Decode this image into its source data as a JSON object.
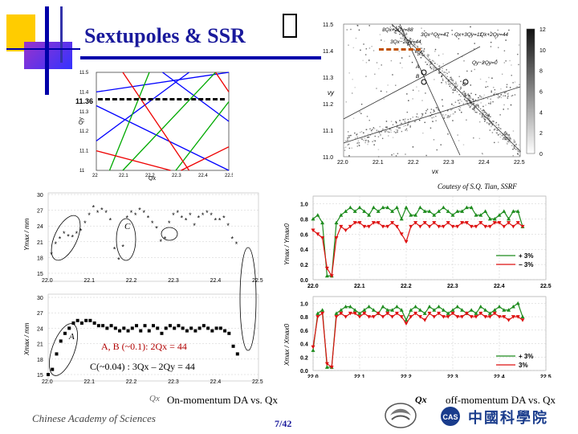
{
  "slide": {
    "title": "Sextupoles & SSR",
    "courtesy": "Coutesy of S.Q. Tian, SSRF",
    "page_number": "7/42",
    "institution_en": "Chinese Academy of Sciences",
    "institution_cn": "中國科學院"
  },
  "captions": {
    "on_momentum": "On-momentum DA vs. Qx",
    "off_momentum": "off-momentum DA vs. Qx",
    "qx_label_left": "Qx",
    "qx_label_right": "Qx"
  },
  "annotations": {
    "resonance_ab": "A, B (~0.1): 2Qx = 44",
    "resonance_c": "C(~0.04) : 3Qx – 2Qy = 44",
    "label_a": "A",
    "label_c": "C",
    "qy_marker": "11.36"
  },
  "chart_data": [
    {
      "type": "line",
      "title": "",
      "xlabel": "Qx",
      "ylabel": "Qy",
      "x_ticks": [
        "22",
        "22.1",
        "22.2",
        "22.3",
        "22.4",
        "22.5"
      ],
      "y_ticks": [
        "11",
        "11.1",
        "11.2",
        "11.3",
        "11.4",
        "11.5"
      ],
      "xlim": [
        22,
        22.5
      ],
      "ylim": [
        11,
        11.5
      ],
      "series": [
        {
          "color": "#0000ff",
          "segments": [
            [
              [
                22,
                11.4
              ],
              [
                22.5,
                11.5
              ]
            ],
            [
              [
                22,
                11.33
              ],
              [
                22.5,
                11.0
              ]
            ],
            [
              [
                22.25,
                11.5
              ],
              [
                22.5,
                11.25
              ]
            ],
            [
              [
                22.0,
                11.15
              ],
              [
                22.35,
                11.5
              ]
            ]
          ]
        },
        {
          "color": "#00aa00",
          "segments": [
            [
              [
                22.05,
                11.0
              ],
              [
                22.2,
                11.5
              ]
            ],
            [
              [
                22.1,
                11.0
              ],
              [
                22.45,
                11.5
              ]
            ],
            [
              [
                22.3,
                11.0
              ],
              [
                22.5,
                11.35
              ]
            ]
          ]
        },
        {
          "color": "#ee0000",
          "segments": [
            [
              [
                22.1,
                11.5
              ],
              [
                22.35,
                11.0
              ]
            ],
            [
              [
                22.0,
                11.1
              ],
              [
                22.28,
                11.0
              ]
            ],
            [
              [
                22.32,
                11.0
              ],
              [
                22.5,
                11.12
              ]
            ],
            [
              [
                22.45,
                11.5
              ],
              [
                22.5,
                11.4
              ]
            ]
          ]
        }
      ]
    },
    {
      "type": "heatmap",
      "title": "",
      "xlabel": "νx",
      "ylabel": "νy",
      "x_ticks": [
        "22.0",
        "22.1",
        "22.2",
        "22.3",
        "22.4",
        "22.5"
      ],
      "y_ticks": [
        "11.0",
        "11.1",
        "11.2",
        "11.3",
        "11.4",
        "11.5"
      ],
      "colorbar_ticks": [
        "0",
        "2",
        "4",
        "6",
        "8",
        "10",
        "12"
      ],
      "resonance_labels": [
        "3Qx−2Qy=88",
        "3Qx−Qy=47",
        "Qx+3Qy=11",
        "Qx+2Qy=44",
        "3Qx−2Qy=44",
        "Qy−2Qy=0",
        "A",
        "B",
        "C"
      ]
    },
    {
      "type": "scatter",
      "title": "",
      "ylabel": "Ymax / mm",
      "xlabel": "",
      "x_ticks": [
        "22.0",
        "22.1",
        "22.2",
        "22.3",
        "22.4",
        "22.5"
      ],
      "y_ticks": [
        "15",
        "18",
        "21",
        "24",
        "27",
        "30"
      ],
      "ylim": [
        15,
        30
      ],
      "series": [
        {
          "name": "",
          "x": [
            22.01,
            22.02,
            22.03,
            22.04,
            22.05,
            22.06,
            22.07,
            22.08,
            22.09,
            22.1,
            22.11,
            22.12,
            22.13,
            22.14,
            22.15,
            22.16,
            22.17,
            22.18,
            22.19,
            22.2,
            22.21,
            22.22,
            22.23,
            22.24,
            22.25,
            22.26,
            22.27,
            22.28,
            22.29,
            22.3,
            22.31,
            22.32,
            22.33,
            22.34,
            22.35,
            22.36,
            22.37,
            22.38,
            22.39,
            22.4,
            22.41,
            22.42,
            22.43,
            22.44,
            22.45
          ],
          "values": [
            18.5,
            20.5,
            21.5,
            22.5,
            22.0,
            21.8,
            22.5,
            23.0,
            24.5,
            26.0,
            27.5,
            26.5,
            27.0,
            26.5,
            25.0,
            19.5,
            17.5,
            20.0,
            25.5,
            26.5,
            26.0,
            27.0,
            26.5,
            25.5,
            24.5,
            23.5,
            21.0,
            21.5,
            24.5,
            26.0,
            26.5,
            25.5,
            25.0,
            26.0,
            24.0,
            25.5,
            26.0,
            26.5,
            26.0,
            25.0,
            25.0,
            25.5,
            24.0,
            21.5,
            20.5
          ]
        }
      ]
    },
    {
      "type": "scatter",
      "title": "",
      "ylabel": "Xmax / mm",
      "xlabel": "",
      "x_ticks": [
        "22.0",
        "22.1",
        "22.2",
        "22.3",
        "22.4",
        "22.5"
      ],
      "y_ticks": [
        "15",
        "18",
        "21",
        "24",
        "27",
        "30"
      ],
      "ylim": [
        15,
        30
      ],
      "series": [
        {
          "name": "",
          "x": [
            22.0,
            22.01,
            22.02,
            22.03,
            22.04,
            22.05,
            22.06,
            22.07,
            22.08,
            22.09,
            22.1,
            22.11,
            22.12,
            22.13,
            22.14,
            22.15,
            22.16,
            22.17,
            22.18,
            22.19,
            22.2,
            22.21,
            22.22,
            22.23,
            22.24,
            22.25,
            22.26,
            22.27,
            22.28,
            22.29,
            22.3,
            22.31,
            22.32,
            22.33,
            22.34,
            22.35,
            22.36,
            22.37,
            22.38,
            22.39,
            22.4,
            22.41,
            22.42,
            22.43,
            22.44,
            22.45
          ],
          "values": [
            15.0,
            16.0,
            19.0,
            21.5,
            23.0,
            24.0,
            25.0,
            25.5,
            25.0,
            25.5,
            25.5,
            25.0,
            24.5,
            24.5,
            24.0,
            24.5,
            24.0,
            23.5,
            24.0,
            23.5,
            24.0,
            24.5,
            23.5,
            24.5,
            23.5,
            24.5,
            24.0,
            23.0,
            24.0,
            24.5,
            24.0,
            24.5,
            24.0,
            23.5,
            24.0,
            23.5,
            24.0,
            24.5,
            24.0,
            23.5,
            24.0,
            24.0,
            23.5,
            23.0,
            20.5,
            19.0
          ]
        }
      ]
    },
    {
      "type": "line",
      "title": "",
      "ylabel": "Ymax / Ymax0",
      "xlabel": "",
      "x_ticks": [
        "22.0",
        "22.1",
        "22.2",
        "22.3",
        "22.4",
        "22.5"
      ],
      "y_ticks": [
        "0.0",
        "0.2",
        "0.4",
        "0.6",
        "0.8",
        "1.0"
      ],
      "ylim": [
        0,
        1.1
      ],
      "series": [
        {
          "name": "+ 3%",
          "color": "#1e8c1e",
          "x": [
            22.0,
            22.01,
            22.02,
            22.03,
            22.04,
            22.05,
            22.06,
            22.07,
            22.08,
            22.09,
            22.1,
            22.11,
            22.12,
            22.13,
            22.14,
            22.15,
            22.16,
            22.17,
            22.18,
            22.19,
            22.2,
            22.21,
            22.22,
            22.23,
            22.24,
            22.25,
            22.26,
            22.27,
            22.28,
            22.29,
            22.3,
            22.31,
            22.32,
            22.33,
            22.34,
            22.35,
            22.36,
            22.37,
            22.38,
            22.39,
            22.4,
            22.41,
            22.42,
            22.43,
            22.44,
            22.45
          ],
          "values": [
            0.8,
            0.85,
            0.75,
            0.05,
            0.05,
            0.75,
            0.85,
            0.9,
            0.95,
            0.9,
            0.95,
            0.9,
            0.85,
            0.95,
            0.9,
            0.95,
            0.95,
            0.9,
            0.95,
            0.8,
            0.95,
            0.85,
            0.85,
            0.95,
            0.9,
            0.9,
            0.85,
            0.9,
            0.95,
            0.9,
            0.85,
            0.9,
            0.9,
            0.95,
            0.95,
            0.85,
            0.85,
            0.9,
            0.8,
            0.8,
            0.85,
            0.9,
            0.8,
            0.9,
            0.9,
            0.7
          ]
        },
        {
          "name": "− 3%",
          "color": "#dd1111",
          "x": [
            22.0,
            22.01,
            22.02,
            22.03,
            22.04,
            22.05,
            22.06,
            22.07,
            22.08,
            22.09,
            22.1,
            22.11,
            22.12,
            22.13,
            22.14,
            22.15,
            22.16,
            22.17,
            22.18,
            22.19,
            22.2,
            22.21,
            22.22,
            22.23,
            22.24,
            22.25,
            22.26,
            22.27,
            22.28,
            22.29,
            22.3,
            22.31,
            22.32,
            22.33,
            22.34,
            22.35,
            22.36,
            22.37,
            22.38,
            22.39,
            22.4,
            22.41,
            22.42,
            22.43,
            22.44,
            22.45
          ],
          "values": [
            0.65,
            0.6,
            0.55,
            0.15,
            0.05,
            0.55,
            0.7,
            0.65,
            0.7,
            0.75,
            0.75,
            0.7,
            0.7,
            0.75,
            0.75,
            0.7,
            0.7,
            0.75,
            0.7,
            0.6,
            0.5,
            0.7,
            0.75,
            0.7,
            0.75,
            0.7,
            0.75,
            0.7,
            0.7,
            0.75,
            0.7,
            0.7,
            0.75,
            0.75,
            0.7,
            0.7,
            0.75,
            0.7,
            0.7,
            0.75,
            0.75,
            0.7,
            0.75,
            0.7,
            0.75,
            0.7
          ]
        }
      ]
    },
    {
      "type": "line",
      "title": "",
      "ylabel": "Xmax / Xmax0",
      "xlabel": "",
      "x_ticks": [
        "22.0",
        "22.1",
        "22.2",
        "22.3",
        "22.4",
        "22.5"
      ],
      "y_ticks": [
        "0.0",
        "0.2",
        "0.4",
        "0.6",
        "0.8",
        "1.0"
      ],
      "ylim": [
        0,
        1.1
      ],
      "series": [
        {
          "name": "+ 3%",
          "color": "#1e8c1e",
          "x": [
            22.0,
            22.01,
            22.02,
            22.03,
            22.04,
            22.05,
            22.06,
            22.07,
            22.08,
            22.09,
            22.1,
            22.11,
            22.12,
            22.13,
            22.14,
            22.15,
            22.16,
            22.17,
            22.18,
            22.19,
            22.2,
            22.21,
            22.22,
            22.23,
            22.24,
            22.25,
            22.26,
            22.27,
            22.28,
            22.29,
            22.3,
            22.31,
            22.32,
            22.33,
            22.34,
            22.35,
            22.36,
            22.37,
            22.38,
            22.39,
            22.4,
            22.41,
            22.42,
            22.43,
            22.44,
            22.45
          ],
          "values": [
            0.3,
            0.85,
            0.9,
            0.05,
            0.05,
            0.85,
            0.9,
            0.95,
            0.95,
            0.9,
            0.85,
            0.9,
            0.95,
            0.9,
            0.85,
            0.95,
            0.9,
            0.9,
            0.95,
            0.9,
            0.75,
            0.9,
            0.95,
            0.9,
            0.85,
            0.95,
            0.9,
            0.95,
            0.9,
            0.85,
            0.9,
            0.95,
            0.9,
            0.85,
            0.9,
            0.85,
            0.95,
            0.9,
            0.85,
            0.9,
            0.95,
            0.9,
            0.9,
            0.95,
            1.0,
            0.8
          ]
        },
        {
          "name": "3%",
          "color": "#dd1111",
          "x": [
            22.0,
            22.01,
            22.02,
            22.03,
            22.04,
            22.05,
            22.06,
            22.07,
            22.08,
            22.09,
            22.1,
            22.11,
            22.12,
            22.13,
            22.14,
            22.15,
            22.16,
            22.17,
            22.18,
            22.19,
            22.2,
            22.21,
            22.22,
            22.23,
            22.24,
            22.25,
            22.26,
            22.27,
            22.28,
            22.29,
            22.3,
            22.31,
            22.32,
            22.33,
            22.34,
            22.35,
            22.36,
            22.37,
            22.38,
            22.39,
            22.4,
            22.41,
            22.42,
            22.43,
            22.44,
            22.45
          ],
          "values": [
            0.35,
            0.8,
            0.85,
            0.1,
            0.05,
            0.8,
            0.85,
            0.8,
            0.85,
            0.85,
            0.8,
            0.85,
            0.8,
            0.8,
            0.85,
            0.8,
            0.85,
            0.8,
            0.85,
            0.8,
            0.7,
            0.8,
            0.85,
            0.8,
            0.75,
            0.85,
            0.8,
            0.85,
            0.8,
            0.8,
            0.85,
            0.8,
            0.8,
            0.85,
            0.8,
            0.8,
            0.85,
            0.8,
            0.8,
            0.85,
            0.8,
            0.8,
            0.75,
            0.8,
            0.8,
            0.75
          ]
        }
      ]
    }
  ],
  "colors": {
    "title": "#1a1a9c",
    "deco_yellow": "#ffcc00",
    "deco_magenta": "#cc33cc",
    "deco_blue": "#3333cc",
    "resonance_red": "#ee0000",
    "resonance_green": "#00aa00",
    "resonance_blue": "#0000ff"
  }
}
